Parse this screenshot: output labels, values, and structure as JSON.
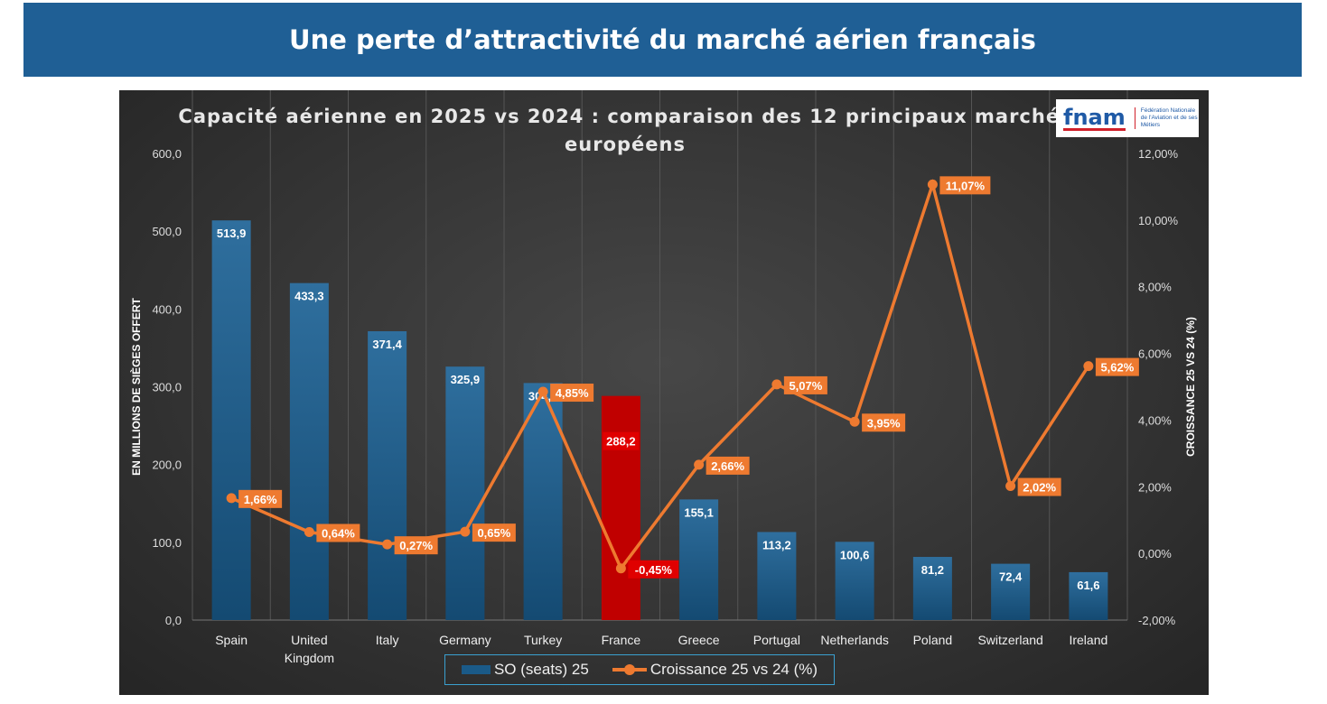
{
  "banner": {
    "title": "Une perte d’attractivité du marché aérien français"
  },
  "logo": {
    "brand": "fnam",
    "subtitle": "Fédération Nationale de l'Aviation et de ses Métiers"
  },
  "chart_data": {
    "type": "bar+line",
    "title": "Capacité aérienne en 2025 vs 2024 : comparaison des 12 principaux marchés européens",
    "categories": [
      "Spain",
      "United Kingdom",
      "Italy",
      "Germany",
      "Turkey",
      "France",
      "Greece",
      "Portugal",
      "Netherlands",
      "Poland",
      "Switzerland",
      "Ireland"
    ],
    "series": [
      {
        "name": "SO (seats) 25",
        "type": "bar",
        "axis": "left",
        "values": [
          513.9,
          433.3,
          371.4,
          325.9,
          304.8,
          288.2,
          155.1,
          113.2,
          100.6,
          81.2,
          72.4,
          61.6
        ],
        "labels": [
          "513,9",
          "433,3",
          "371,4",
          "325,9",
          "304,8",
          "288,2",
          "155,1",
          "113,2",
          "100,6",
          "81,2",
          "72,4",
          "61,6"
        ]
      },
      {
        "name": "Croissance 25 vs 24 (%)",
        "type": "line",
        "axis": "right",
        "values": [
          1.66,
          0.64,
          0.27,
          0.65,
          4.85,
          -0.45,
          2.66,
          5.07,
          3.95,
          11.07,
          2.02,
          5.62
        ],
        "labels": [
          "1,66%",
          "0,64%",
          "0,27%",
          "0,65%",
          "4,85%",
          "-0,45%",
          "2,66%",
          "5,07%",
          "3,95%",
          "11,07%",
          "2,02%",
          "5,62%"
        ]
      }
    ],
    "highlight": "France",
    "ylabel": "EN MILLIONS DE SIÈGES OFFERT",
    "y2label": "CROISSANCE 25 VS 24 (%)",
    "ylim": [
      0,
      600
    ],
    "y2lim": [
      -2,
      12
    ],
    "yticks": [
      "0,0",
      "100,0",
      "200,0",
      "300,0",
      "400,0",
      "500,0",
      "600,0"
    ],
    "y2ticks": [
      "-2,00%",
      "0,00%",
      "2,00%",
      "4,00%",
      "6,00%",
      "8,00%",
      "10,00%",
      "12,00%"
    ],
    "grid": true,
    "legend": "bottom",
    "colors": {
      "bar": "#1a5a88",
      "highlight": "#c00000",
      "line": "#ee7a30",
      "label_bg": "#ee7a30",
      "highlight_label_bg": "#e00000"
    }
  }
}
